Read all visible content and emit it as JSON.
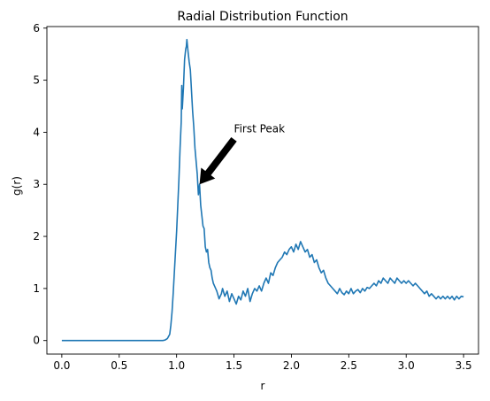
{
  "chart_data": {
    "type": "line",
    "title": "Radial Distribution Function",
    "xlabel": "r",
    "ylabel": "g(r)",
    "xlim": [
      -0.13,
      3.63
    ],
    "ylim": [
      -0.26,
      6.03
    ],
    "xticks": [
      "0.0",
      "0.5",
      "1.0",
      "1.5",
      "2.0",
      "2.5",
      "3.0",
      "3.5"
    ],
    "xtick_values": [
      0.0,
      0.5,
      1.0,
      1.5,
      2.0,
      2.5,
      3.0,
      3.5
    ],
    "yticks": [
      "0",
      "1",
      "2",
      "3",
      "4",
      "5",
      "6"
    ],
    "ytick_values": [
      0,
      1,
      2,
      3,
      4,
      5,
      6
    ],
    "grid": false,
    "series": [
      {
        "color": "#1f77b4",
        "points": [
          [
            0.0,
            0.0
          ],
          [
            0.1,
            0.0
          ],
          [
            0.2,
            0.0
          ],
          [
            0.3,
            0.0
          ],
          [
            0.4,
            0.0
          ],
          [
            0.5,
            0.0
          ],
          [
            0.6,
            0.0
          ],
          [
            0.7,
            0.0
          ],
          [
            0.8,
            0.0
          ],
          [
            0.88,
            0.0
          ],
          [
            0.9,
            0.01
          ],
          [
            0.92,
            0.04
          ],
          [
            0.94,
            0.12
          ],
          [
            0.95,
            0.3
          ],
          [
            0.96,
            0.55
          ],
          [
            0.97,
            0.9
          ],
          [
            0.98,
            1.3
          ],
          [
            0.99,
            1.7
          ],
          [
            1.0,
            2.1
          ],
          [
            1.01,
            2.6
          ],
          [
            1.02,
            3.1
          ],
          [
            1.03,
            3.7
          ],
          [
            1.04,
            4.2
          ],
          [
            1.045,
            4.9
          ],
          [
            1.05,
            4.45
          ],
          [
            1.06,
            4.85
          ],
          [
            1.07,
            5.4
          ],
          [
            1.08,
            5.6
          ],
          [
            1.085,
            5.65
          ],
          [
            1.09,
            5.78
          ],
          [
            1.1,
            5.55
          ],
          [
            1.11,
            5.35
          ],
          [
            1.12,
            5.2
          ],
          [
            1.13,
            4.8
          ],
          [
            1.14,
            4.4
          ],
          [
            1.15,
            4.1
          ],
          [
            1.16,
            3.7
          ],
          [
            1.17,
            3.45
          ],
          [
            1.18,
            3.2
          ],
          [
            1.19,
            2.8
          ],
          [
            1.2,
            3.0
          ],
          [
            1.21,
            2.6
          ],
          [
            1.22,
            2.4
          ],
          [
            1.23,
            2.2
          ],
          [
            1.24,
            2.15
          ],
          [
            1.25,
            1.8
          ],
          [
            1.26,
            1.7
          ],
          [
            1.27,
            1.75
          ],
          [
            1.28,
            1.5
          ],
          [
            1.29,
            1.4
          ],
          [
            1.3,
            1.35
          ],
          [
            1.31,
            1.2
          ],
          [
            1.32,
            1.1
          ],
          [
            1.33,
            1.05
          ],
          [
            1.35,
            0.95
          ],
          [
            1.37,
            0.8
          ],
          [
            1.39,
            0.9
          ],
          [
            1.4,
            1.0
          ],
          [
            1.42,
            0.85
          ],
          [
            1.44,
            0.95
          ],
          [
            1.46,
            0.75
          ],
          [
            1.48,
            0.9
          ],
          [
            1.5,
            0.8
          ],
          [
            1.52,
            0.7
          ],
          [
            1.54,
            0.85
          ],
          [
            1.56,
            0.78
          ],
          [
            1.58,
            0.95
          ],
          [
            1.6,
            0.85
          ],
          [
            1.62,
            1.0
          ],
          [
            1.64,
            0.75
          ],
          [
            1.66,
            0.9
          ],
          [
            1.68,
            1.0
          ],
          [
            1.7,
            0.95
          ],
          [
            1.72,
            1.05
          ],
          [
            1.74,
            0.95
          ],
          [
            1.76,
            1.1
          ],
          [
            1.78,
            1.2
          ],
          [
            1.8,
            1.1
          ],
          [
            1.82,
            1.3
          ],
          [
            1.84,
            1.25
          ],
          [
            1.86,
            1.4
          ],
          [
            1.88,
            1.5
          ],
          [
            1.9,
            1.55
          ],
          [
            1.92,
            1.6
          ],
          [
            1.94,
            1.7
          ],
          [
            1.96,
            1.65
          ],
          [
            1.98,
            1.75
          ],
          [
            2.0,
            1.8
          ],
          [
            2.02,
            1.7
          ],
          [
            2.04,
            1.85
          ],
          [
            2.06,
            1.75
          ],
          [
            2.08,
            1.9
          ],
          [
            2.1,
            1.8
          ],
          [
            2.12,
            1.7
          ],
          [
            2.14,
            1.75
          ],
          [
            2.16,
            1.6
          ],
          [
            2.18,
            1.65
          ],
          [
            2.2,
            1.5
          ],
          [
            2.22,
            1.55
          ],
          [
            2.24,
            1.4
          ],
          [
            2.26,
            1.3
          ],
          [
            2.28,
            1.35
          ],
          [
            2.3,
            1.2
          ],
          [
            2.32,
            1.1
          ],
          [
            2.34,
            1.05
          ],
          [
            2.36,
            1.0
          ],
          [
            2.38,
            0.95
          ],
          [
            2.4,
            0.9
          ],
          [
            2.42,
            1.0
          ],
          [
            2.44,
            0.92
          ],
          [
            2.46,
            0.88
          ],
          [
            2.48,
            0.95
          ],
          [
            2.5,
            0.9
          ],
          [
            2.52,
            1.0
          ],
          [
            2.54,
            0.9
          ],
          [
            2.56,
            0.95
          ],
          [
            2.58,
            0.98
          ],
          [
            2.6,
            0.92
          ],
          [
            2.62,
            1.0
          ],
          [
            2.64,
            0.95
          ],
          [
            2.66,
            1.02
          ],
          [
            2.68,
            1.0
          ],
          [
            2.7,
            1.05
          ],
          [
            2.72,
            1.1
          ],
          [
            2.74,
            1.05
          ],
          [
            2.76,
            1.15
          ],
          [
            2.78,
            1.1
          ],
          [
            2.8,
            1.2
          ],
          [
            2.82,
            1.15
          ],
          [
            2.84,
            1.1
          ],
          [
            2.86,
            1.2
          ],
          [
            2.88,
            1.15
          ],
          [
            2.9,
            1.1
          ],
          [
            2.92,
            1.2
          ],
          [
            2.94,
            1.15
          ],
          [
            2.96,
            1.1
          ],
          [
            2.98,
            1.15
          ],
          [
            3.0,
            1.1
          ],
          [
            3.02,
            1.15
          ],
          [
            3.04,
            1.1
          ],
          [
            3.06,
            1.05
          ],
          [
            3.08,
            1.1
          ],
          [
            3.1,
            1.05
          ],
          [
            3.12,
            1.0
          ],
          [
            3.14,
            0.95
          ],
          [
            3.16,
            0.9
          ],
          [
            3.18,
            0.95
          ],
          [
            3.2,
            0.85
          ],
          [
            3.22,
            0.9
          ],
          [
            3.24,
            0.85
          ],
          [
            3.26,
            0.8
          ],
          [
            3.28,
            0.85
          ],
          [
            3.3,
            0.8
          ],
          [
            3.32,
            0.85
          ],
          [
            3.34,
            0.8
          ],
          [
            3.36,
            0.85
          ],
          [
            3.38,
            0.8
          ],
          [
            3.4,
            0.85
          ],
          [
            3.42,
            0.78
          ],
          [
            3.44,
            0.85
          ],
          [
            3.46,
            0.8
          ],
          [
            3.48,
            0.85
          ],
          [
            3.5,
            0.84
          ]
        ]
      }
    ],
    "annotation": {
      "text": "First Peak",
      "text_xy": [
        1.5,
        4.0
      ],
      "arrow_target": [
        1.2,
        3.0
      ],
      "arrow_color": "#000000"
    }
  }
}
